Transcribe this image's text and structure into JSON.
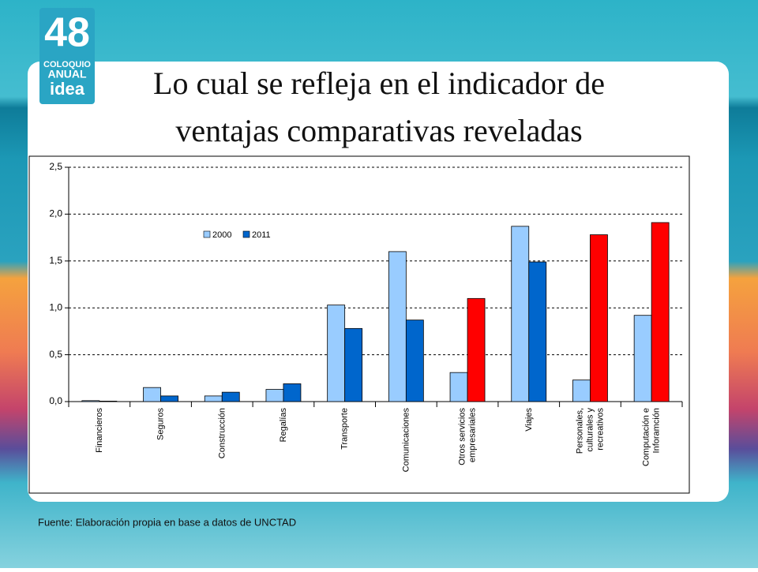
{
  "logo": {
    "number": "48",
    "line1": "COLOQUIO",
    "line2": "ANUAL",
    "line3": "idea"
  },
  "title": [
    "Lo cual se refleja en el indicador de",
    "ventajas comparativas reveladas"
  ],
  "source": "Fuente: Elaboración propia en base a datos de UNCTAD",
  "chart_data": {
    "type": "bar",
    "categories": [
      "Financieros",
      "Seguros",
      "Construcción",
      "Regalías",
      "Transporte",
      "Comunicaciones",
      "Otros servicios\nempresariales",
      "Viajes",
      "Personales,\nculturales y\nrecreativos",
      "Computación e\nInforamción"
    ],
    "series": [
      {
        "name": "2000",
        "color": "#99ccff",
        "values": [
          0.01,
          0.15,
          0.06,
          0.13,
          1.03,
          1.6,
          0.31,
          1.87,
          0.23,
          0.92
        ]
      },
      {
        "name": "2011",
        "color": "#0066cc",
        "colors": [
          "#0066cc",
          "#0066cc",
          "#0066cc",
          "#0066cc",
          "#0066cc",
          "#0066cc",
          "#ff0000",
          "#0066cc",
          "#ff0000",
          "#ff0000"
        ],
        "values": [
          0.005,
          0.06,
          0.1,
          0.19,
          0.78,
          0.87,
          1.1,
          1.49,
          1.78,
          1.91
        ]
      }
    ],
    "ylim": [
      0,
      2.5
    ],
    "yticks": [
      {
        "value": 0,
        "label": "0,0"
      },
      {
        "value": 0.5,
        "label": "0,5"
      },
      {
        "value": 1,
        "label": "1,0"
      },
      {
        "value": 1.5,
        "label": "1,5"
      },
      {
        "value": 2,
        "label": "2,0"
      },
      {
        "value": 2.5,
        "label": "2,5"
      }
    ],
    "grid": true
  }
}
